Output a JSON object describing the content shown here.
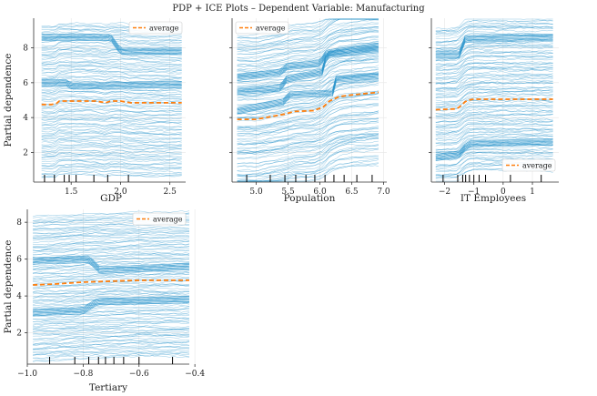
{
  "figure_title": "PDP + ICE Plots – Dependent Variable: Manufacturing",
  "colors": {
    "ice": "#1f8fc9",
    "average": "#ff7f0e",
    "rug": "#000000",
    "grid": "#e6e6e6",
    "axis": "#333333"
  },
  "chart_data": [
    {
      "type": "line",
      "id": "gdp",
      "xlabel": "GDP",
      "ylabel": "Partial dependence",
      "xlim": [
        1.12,
        2.66
      ],
      "ylim": [
        0.3,
        9.7
      ],
      "xticks": [
        1.5,
        2.0,
        2.5
      ],
      "xtick_labels": [
        "1.5",
        "2.0",
        "2.5"
      ],
      "yticks": [
        2,
        4,
        6,
        8
      ],
      "ytick_labels": [
        "2",
        "4",
        "6",
        "8"
      ],
      "legend_label": "average",
      "legend_loc": "top-right",
      "rug": [
        1.23,
        1.33,
        1.43,
        1.48,
        1.55,
        1.73,
        1.87,
        2.08
      ],
      "ice_lines": 120,
      "ice_value_range": [
        0.6,
        9.4
      ],
      "average": {
        "x": [
          1.2,
          1.3,
          1.35,
          1.38,
          1.55,
          1.75,
          1.85,
          1.9,
          2.0,
          2.1,
          2.62
        ],
        "y": [
          4.75,
          4.75,
          4.8,
          4.95,
          4.95,
          4.95,
          4.85,
          4.95,
          4.95,
          4.85,
          4.85
        ]
      },
      "marked_lines": [
        {
          "x": [
            1.2,
            1.9,
            2.0,
            2.62
          ],
          "y": [
            8.6,
            8.6,
            7.8,
            7.8
          ]
        },
        {
          "x": [
            1.2,
            1.45,
            1.5,
            2.62
          ],
          "y": [
            6.0,
            6.0,
            5.8,
            5.9
          ]
        }
      ]
    },
    {
      "type": "line",
      "id": "population",
      "xlabel": "Population",
      "ylabel": "",
      "xlim": [
        4.62,
        7.05
      ],
      "ylim": [
        0.3,
        9.7
      ],
      "xticks": [
        5.0,
        5.5,
        6.0,
        6.5,
        7.0
      ],
      "xtick_labels": [
        "5.0",
        "5.5",
        "6.0",
        "6.5",
        "7.0"
      ],
      "yticks": [
        2,
        4,
        6,
        8
      ],
      "legend_label": "average",
      "legend_loc": "top-left",
      "rug": [
        4.85,
        5.22,
        5.45,
        5.62,
        5.78,
        5.92,
        6.08,
        6.22,
        6.38,
        6.58,
        6.82
      ],
      "ice_lines": 120,
      "ice_value_range": [
        0.5,
        9.6
      ],
      "average": {
        "x": [
          4.7,
          5.0,
          5.3,
          5.45,
          5.6,
          5.9,
          6.05,
          6.15,
          6.3,
          6.5,
          6.92
        ],
        "y": [
          3.9,
          3.9,
          4.1,
          4.2,
          4.35,
          4.4,
          4.6,
          4.95,
          5.2,
          5.3,
          5.45
        ]
      },
      "marked_lines": [
        {
          "x": [
            4.7,
            5.4,
            5.45,
            6.05,
            6.1,
            6.92
          ],
          "y": [
            5.5,
            5.7,
            6.2,
            6.6,
            7.6,
            7.9
          ]
        },
        {
          "x": [
            4.7,
            5.45,
            5.5,
            6.2,
            6.25,
            6.92
          ],
          "y": [
            4.4,
            4.9,
            5.3,
            5.4,
            6.2,
            6.4
          ]
        },
        {
          "x": [
            4.7,
            5.4,
            5.45,
            6.0,
            6.1,
            6.92
          ],
          "y": [
            6.3,
            6.6,
            6.9,
            7.1,
            7.7,
            8.1
          ]
        }
      ]
    },
    {
      "type": "line",
      "id": "it-employees",
      "xlabel": "IT Employees",
      "ylabel": "",
      "xlim": [
        -2.45,
        1.9
      ],
      "ylim": [
        0.3,
        9.7
      ],
      "xticks": [
        -2,
        -1,
        0,
        1
      ],
      "xtick_labels": [
        "−2",
        "−1",
        "0",
        "1"
      ],
      "yticks": [
        2,
        4,
        6,
        8
      ],
      "legend_label": "average",
      "legend_loc": "bottom-right",
      "rug": [
        -2.05,
        -1.55,
        -1.38,
        -1.28,
        -1.15,
        -1.0,
        -0.82,
        -0.6,
        0.25,
        1.3
      ],
      "ice_lines": 130,
      "ice_value_range": [
        0.7,
        9.5
      ],
      "average": {
        "x": [
          -2.3,
          -1.6,
          -1.5,
          -1.3,
          -1.2,
          -1.0,
          0.0,
          1.7
        ],
        "y": [
          4.45,
          4.5,
          4.6,
          4.9,
          5.0,
          5.05,
          5.05,
          5.05
        ]
      },
      "marked_lines": [
        {
          "x": [
            -2.3,
            -1.5,
            -1.3,
            -1.1,
            1.7
          ],
          "y": [
            1.7,
            1.9,
            2.3,
            2.5,
            2.6
          ]
        },
        {
          "x": [
            -2.3,
            -1.5,
            -1.3,
            1.7
          ],
          "y": [
            7.6,
            7.6,
            8.5,
            8.6
          ]
        }
      ]
    },
    {
      "type": "line",
      "id": "tertiary",
      "xlabel": "Tertiary",
      "ylabel": "Partial dependence",
      "xlim": [
        -1.0,
        -0.42
      ],
      "ylim": [
        0.3,
        8.7
      ],
      "xticks": [
        -1.0,
        -0.8,
        -0.6,
        -0.4
      ],
      "xtick_labels": [
        "−1.0",
        "−0.8",
        "−0.6",
        "−0.4"
      ],
      "yticks": [
        2,
        4,
        6,
        8
      ],
      "ytick_labels": [
        "2",
        "4",
        "6",
        "8"
      ],
      "legend_label": "average",
      "legend_loc": "top-right",
      "rug": [
        -0.92,
        -0.83,
        -0.78,
        -0.745,
        -0.72,
        -0.69,
        -0.655,
        -0.6,
        -0.48
      ],
      "ice_lines": 120,
      "ice_value_range": [
        0.6,
        8.5
      ],
      "average": {
        "x": [
          -0.98,
          -0.9,
          -0.8,
          -0.7,
          -0.6,
          -0.5,
          -0.42
        ],
        "y": [
          4.6,
          4.65,
          4.75,
          4.8,
          4.85,
          4.85,
          4.85
        ]
      },
      "marked_lines": [
        {
          "x": [
            -0.98,
            -0.78,
            -0.74,
            -0.42
          ],
          "y": [
            5.9,
            6.0,
            5.4,
            5.6
          ]
        },
        {
          "x": [
            -0.98,
            -0.8,
            -0.75,
            -0.42
          ],
          "y": [
            3.1,
            3.2,
            3.7,
            3.8
          ]
        }
      ]
    }
  ]
}
